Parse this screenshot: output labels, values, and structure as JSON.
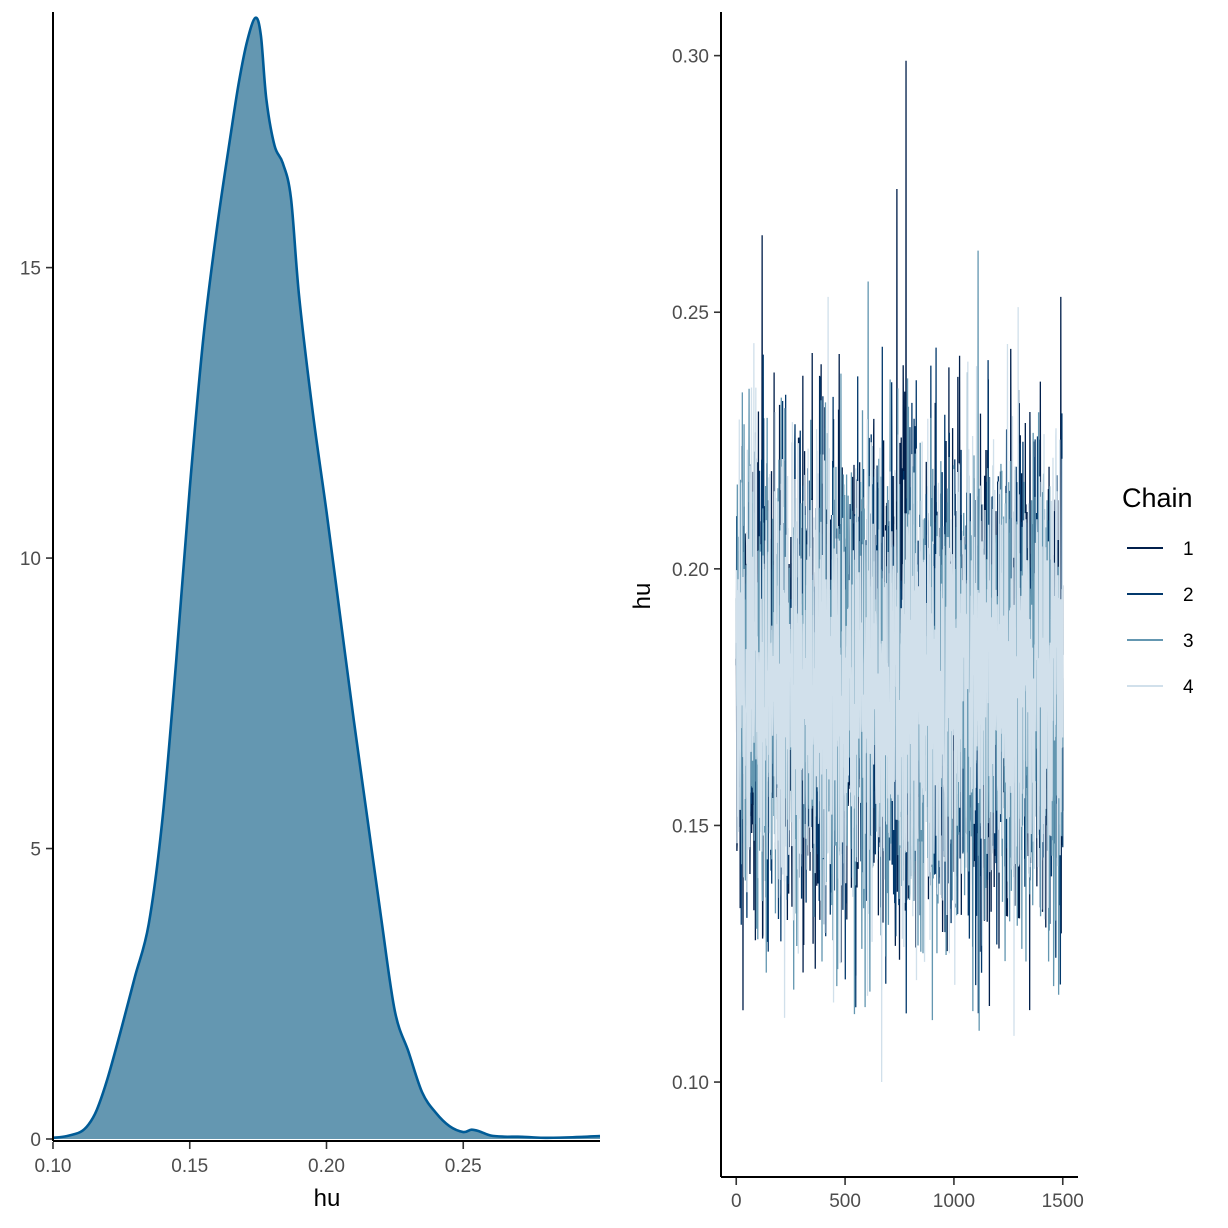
{
  "chart_data": [
    {
      "type": "area",
      "title": "",
      "xlabel": "hu",
      "ylabel": "",
      "xlim": [
        0.1,
        0.3
      ],
      "ylim": [
        0,
        19.4
      ],
      "x_ticks": [
        0.1,
        0.15,
        0.2,
        0.25
      ],
      "x_tick_labels": [
        "0.10",
        "0.15",
        "0.20",
        "0.25"
      ],
      "y_ticks": [
        0,
        5,
        10,
        15
      ],
      "y_tick_labels": [
        "0",
        "5",
        "10",
        "15"
      ],
      "grid": false,
      "fill_color": "#6497b1",
      "line_color": "#005b96",
      "series": [
        {
          "x": [
            0.1,
            0.105,
            0.11,
            0.113,
            0.116,
            0.12,
            0.125,
            0.13,
            0.135,
            0.14,
            0.145,
            0.15,
            0.155,
            0.16,
            0.165,
            0.168,
            0.171,
            0.174,
            0.176,
            0.178,
            0.181,
            0.184,
            0.187,
            0.19,
            0.195,
            0.2,
            0.205,
            0.21,
            0.215,
            0.22,
            0.225,
            0.23,
            0.235,
            0.24,
            0.245,
            0.25,
            0.253,
            0.256,
            0.26,
            0.265,
            0.27,
            0.275,
            0.28,
            0.29,
            0.3
          ],
          "y": [
            0.02,
            0.05,
            0.12,
            0.25,
            0.5,
            1.05,
            1.9,
            2.8,
            3.7,
            5.5,
            8.2,
            11.2,
            13.8,
            15.7,
            17.3,
            18.2,
            18.9,
            19.3,
            19.0,
            17.9,
            17.1,
            16.8,
            16.2,
            14.5,
            12.5,
            10.8,
            9.0,
            7.2,
            5.5,
            3.8,
            2.2,
            1.5,
            0.8,
            0.45,
            0.22,
            0.12,
            0.16,
            0.13,
            0.06,
            0.04,
            0.04,
            0.03,
            0.02,
            0.03,
            0.05
          ]
        }
      ]
    },
    {
      "type": "line",
      "title": "",
      "xlabel": "",
      "ylabel": "hu",
      "xlim": [
        -70,
        1570
      ],
      "ylim": [
        0.0815,
        0.3085
      ],
      "x_ticks": [
        0,
        500,
        1000,
        1500
      ],
      "x_tick_labels": [
        "0",
        "500",
        "1000",
        "1500"
      ],
      "y_ticks": [
        0.1,
        0.15,
        0.2,
        0.25,
        0.3
      ],
      "y_tick_labels": [
        "0.10",
        "0.15",
        "0.20",
        "0.25",
        "0.30"
      ],
      "grid": false,
      "iterations": 1500,
      "center": 0.178,
      "spread": 0.022,
      "legend": {
        "title": "Chain",
        "position": "right",
        "entries": [
          "1",
          "2",
          "3",
          "4"
        ]
      },
      "series": [
        {
          "name": "1",
          "color": "#011f4b",
          "lo": 0.14,
          "hi": 0.23,
          "outliers": [
            [
              779,
              0.299
            ],
            [
              737,
              0.274
            ],
            [
              118,
              0.265
            ],
            [
              30,
              0.114
            ],
            [
              1490,
              0.253
            ]
          ]
        },
        {
          "name": "2",
          "color": "#03396c",
          "lo": 0.14,
          "hi": 0.225,
          "outliers": [
            [
              1005,
              0.134
            ],
            [
              1488,
              0.119
            ],
            [
              960,
              0.142
            ],
            [
              500,
              0.12
            ]
          ]
        },
        {
          "name": "3",
          "color": "#6497b1",
          "lo": 0.145,
          "hi": 0.225,
          "outliers": [
            [
              1110,
              0.262
            ],
            [
              1115,
              0.11
            ],
            [
              605,
              0.256
            ],
            [
              263,
              0.118
            ],
            [
              1480,
              0.117
            ]
          ]
        },
        {
          "name": "4",
          "color": "#d1e0eb",
          "lo": 0.15,
          "hi": 0.215,
          "outliers": [
            [
              667,
              0.1
            ],
            [
              1275,
              0.109
            ],
            [
              421,
              0.253
            ],
            [
              1294,
              0.251
            ]
          ]
        }
      ]
    }
  ]
}
